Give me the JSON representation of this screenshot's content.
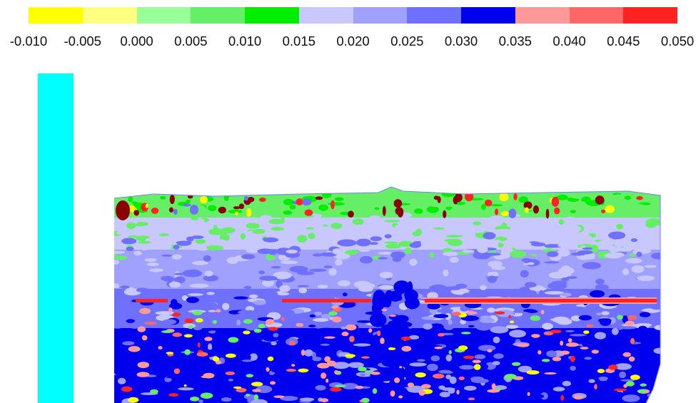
{
  "legend": {
    "colors": [
      "#ffff00",
      "#ffff80",
      "#99ff99",
      "#66ee66",
      "#00ee00",
      "#c8c8ff",
      "#a0a0ff",
      "#7070ff",
      "#0000ee",
      "#ff9999",
      "#ff6666",
      "#ff2222"
    ],
    "tick_labels": [
      "-0.010",
      "-0.005",
      "0.000",
      "0.005",
      "0.010",
      "0.015",
      "0.020",
      "0.025",
      "0.030",
      "0.035",
      "0.040",
      "0.045",
      "0.050"
    ]
  },
  "side_strip": {
    "color": "#00ffff"
  },
  "chart_data": {
    "type": "heatmap",
    "title": "",
    "xlabel": "",
    "ylabel": "",
    "color_scale": {
      "min": -0.01,
      "max": 0.05,
      "step": 0.005,
      "bins": [
        {
          "range": [
            -0.01,
            -0.005
          ],
          "color": "#ffff00"
        },
        {
          "range": [
            -0.005,
            0.0
          ],
          "color": "#ffff80"
        },
        {
          "range": [
            0.0,
            0.005
          ],
          "color": "#99ff99"
        },
        {
          "range": [
            0.005,
            0.01
          ],
          "color": "#66ee66"
        },
        {
          "range": [
            0.01,
            0.015
          ],
          "color": "#00ee00"
        },
        {
          "range": [
            0.015,
            0.02
          ],
          "color": "#c8c8ff"
        },
        {
          "range": [
            0.02,
            0.025
          ],
          "color": "#a0a0ff"
        },
        {
          "range": [
            0.025,
            0.03
          ],
          "color": "#7070ff"
        },
        {
          "range": [
            0.03,
            0.035
          ],
          "color": "#0000ee"
        },
        {
          "range": [
            0.035,
            0.04
          ],
          "color": "#ff9999"
        },
        {
          "range": [
            0.04,
            0.045
          ],
          "color": "#ff6666"
        },
        {
          "range": [
            0.045,
            0.05
          ],
          "color": "#ff2222"
        }
      ]
    },
    "grid": false,
    "legend_position": "top"
  }
}
